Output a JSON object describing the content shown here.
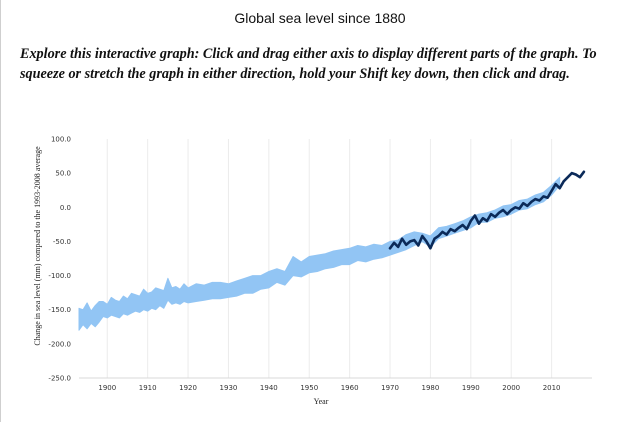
{
  "page": {
    "title": "Global sea level since 1880",
    "instructions": "Explore this interactive graph: Click and drag either axis to display different parts of the graph. To squeeze or stretch the graph in either direction, hold your Shift key down, then click and drag."
  },
  "chart_data": {
    "type": "line",
    "title": "Global sea level since 1880",
    "xlabel": "Year",
    "ylabel": "Change in sea level (mm) compared to the 1993-2008 average",
    "xlim": [
      1893,
      2020
    ],
    "ylim": [
      -250,
      100
    ],
    "x_ticks": [
      1900,
      1910,
      1920,
      1930,
      1940,
      1950,
      1960,
      1970,
      1980,
      1990,
      2000,
      2010
    ],
    "y_ticks": [
      100,
      50,
      0,
      -50,
      -100,
      -150,
      -200,
      -250
    ],
    "y_tick_labels": [
      "100.0",
      "50.0",
      "0.0",
      "-50.0",
      "-100.0",
      "-150.0",
      "-200.0",
      "-250.0"
    ],
    "grid": "vertical",
    "series": [
      {
        "color": "#92c5f4",
        "band": true,
        "x": [
          1893,
          1894,
          1895,
          1896,
          1897,
          1898,
          1899,
          1900,
          1901,
          1902,
          1903,
          1904,
          1905,
          1906,
          1907,
          1908,
          1909,
          1910,
          1911,
          1912,
          1913,
          1914,
          1915,
          1916,
          1917,
          1918,
          1919,
          1920,
          1922,
          1924,
          1926,
          1928,
          1930,
          1932,
          1934,
          1936,
          1938,
          1940,
          1942,
          1944,
          1946,
          1948,
          1950,
          1952,
          1954,
          1956,
          1958,
          1960,
          1962,
          1964,
          1966,
          1968,
          1970,
          1972,
          1974,
          1976,
          1978,
          1980,
          1982,
          1984,
          1986,
          1988,
          1990,
          1992,
          1994,
          1996,
          1998,
          2000,
          2002,
          2004,
          2006,
          2008,
          2010,
          2012
        ],
        "low": [
          -180,
          -172,
          -178,
          -170,
          -175,
          -168,
          -160,
          -162,
          -158,
          -160,
          -162,
          -156,
          -158,
          -155,
          -152,
          -154,
          -150,
          -152,
          -148,
          -150,
          -144,
          -148,
          -136,
          -142,
          -140,
          -142,
          -138,
          -140,
          -138,
          -136,
          -134,
          -134,
          -132,
          -130,
          -126,
          -126,
          -120,
          -118,
          -110,
          -114,
          -100,
          -102,
          -96,
          -94,
          -90,
          -88,
          -84,
          -84,
          -78,
          -80,
          -76,
          -74,
          -70,
          -66,
          -62,
          -56,
          -50,
          -58,
          -46,
          -42,
          -38,
          -34,
          -30,
          -22,
          -22,
          -16,
          -14,
          -10,
          -4,
          -2,
          4,
          8,
          18,
          32
        ],
        "high": [
          -148,
          -150,
          -140,
          -152,
          -144,
          -138,
          -138,
          -142,
          -132,
          -136,
          -138,
          -130,
          -134,
          -126,
          -128,
          -130,
          -120,
          -126,
          -124,
          -118,
          -120,
          -122,
          -104,
          -118,
          -116,
          -120,
          -112,
          -118,
          -112,
          -114,
          -110,
          -110,
          -112,
          -108,
          -104,
          -100,
          -100,
          -94,
          -90,
          -94,
          -72,
          -80,
          -72,
          -70,
          -68,
          -64,
          -62,
          -60,
          -56,
          -58,
          -54,
          -56,
          -50,
          -48,
          -40,
          -36,
          -38,
          -42,
          -30,
          -28,
          -24,
          -20,
          -14,
          -10,
          -8,
          -4,
          2,
          4,
          10,
          12,
          18,
          22,
          32,
          44
        ]
      },
      {
        "color": "#0b2a59",
        "x": [
          1970,
          1971,
          1972,
          1973,
          1974,
          1975,
          1976,
          1977,
          1978,
          1979,
          1980,
          1981,
          1982,
          1983,
          1984,
          1985,
          1986,
          1987,
          1988,
          1989,
          1990,
          1991,
          1992,
          1993,
          1994,
          1995,
          1996,
          1997,
          1998,
          1999,
          2000,
          2001,
          2002,
          2003,
          2004,
          2005,
          2006,
          2007,
          2008,
          2009,
          2010,
          2011,
          2012,
          2013,
          2014,
          2015,
          2016,
          2017,
          2018
        ],
        "values": [
          -60,
          -52,
          -58,
          -46,
          -55,
          -50,
          -48,
          -56,
          -42,
          -50,
          -60,
          -46,
          -42,
          -36,
          -40,
          -32,
          -35,
          -30,
          -26,
          -32,
          -20,
          -12,
          -24,
          -16,
          -20,
          -10,
          -14,
          -8,
          -4,
          -10,
          -4,
          0,
          -2,
          6,
          2,
          8,
          12,
          10,
          16,
          14,
          24,
          34,
          28,
          38,
          44,
          50,
          48,
          44,
          52
        ]
      }
    ]
  }
}
